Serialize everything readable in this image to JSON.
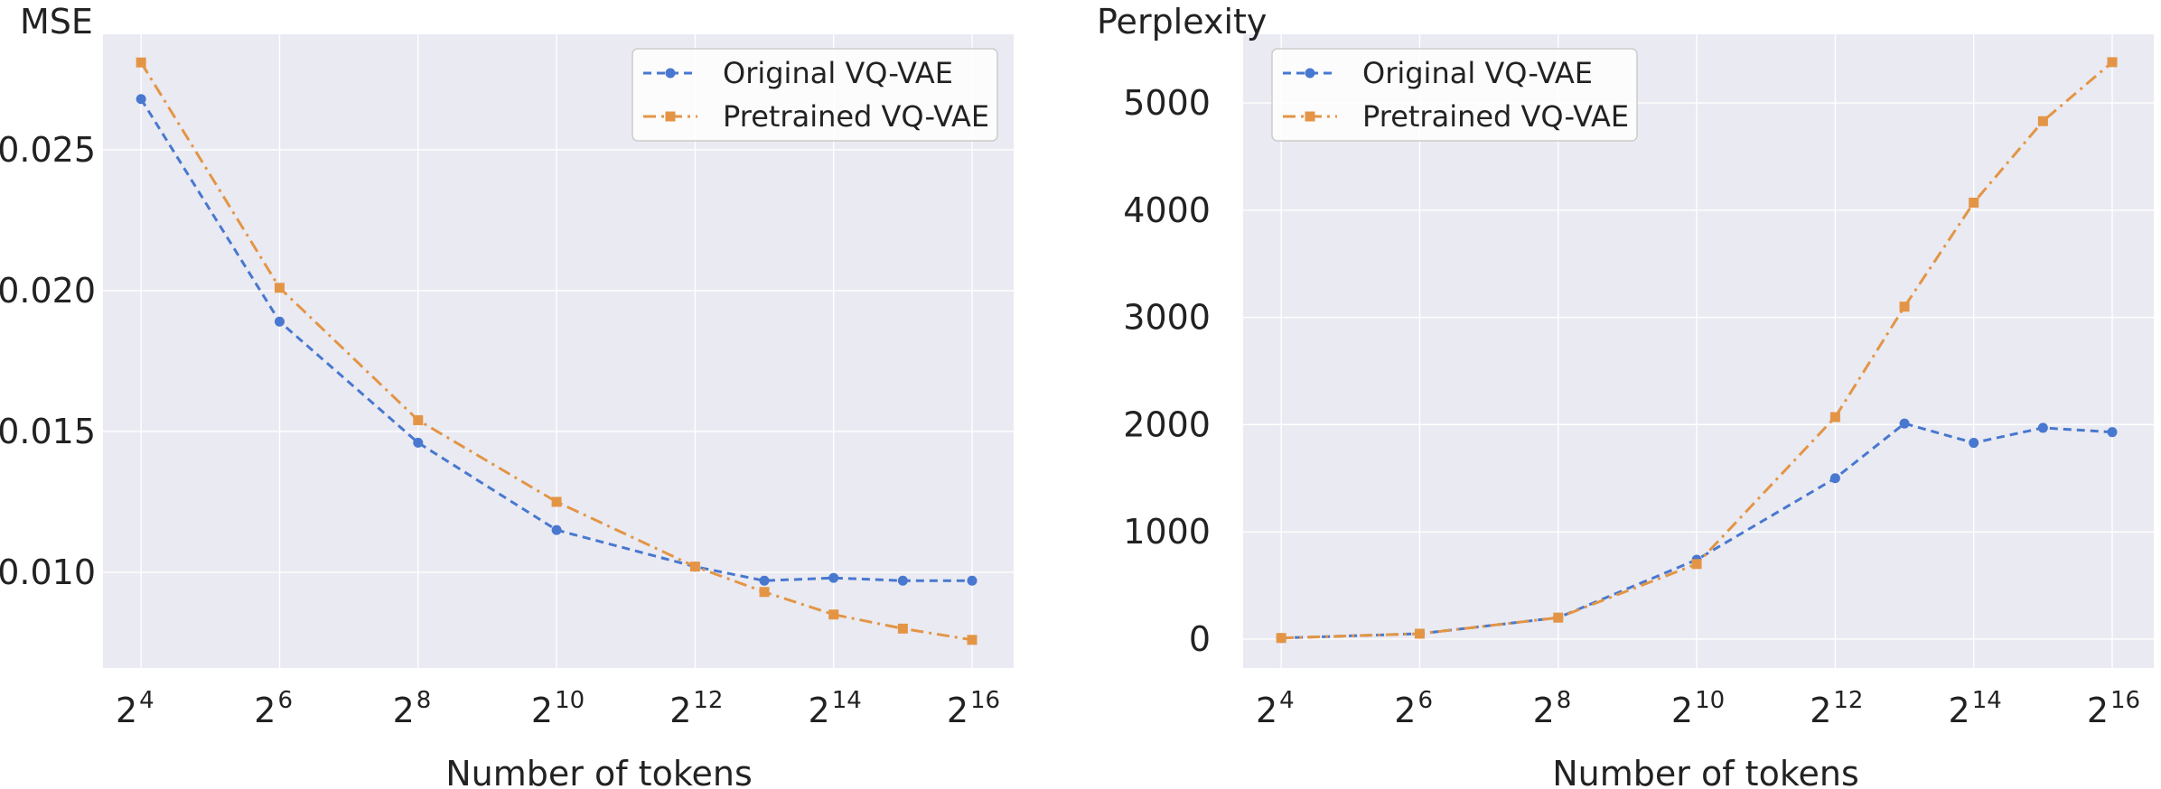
{
  "chart_data": [
    {
      "type": "line",
      "title": "",
      "xlabel": "Number of tokens",
      "ylabel": "MSE",
      "x_base": "2",
      "x_exponents": [
        4,
        6,
        8,
        10,
        12,
        13,
        14,
        15,
        16
      ],
      "x_tick_exponents": [
        "4",
        "6",
        "8",
        "10",
        "12",
        "14",
        "16"
      ],
      "y_ticks": [
        "0.010",
        "0.015",
        "0.020",
        "0.025"
      ],
      "y_tick_values": [
        0.01,
        0.015,
        0.02,
        0.025
      ],
      "xlim_exponent": [
        3.45,
        16.6
      ],
      "ylim": [
        0.0066,
        0.0291
      ],
      "grid": true,
      "legend": "top-right",
      "series": [
        {
          "name": "Original VQ-VAE",
          "color": "#4878cf",
          "dash": "dashed",
          "marker": "circle",
          "values": [
            0.0268,
            0.0189,
            0.0146,
            0.0115,
            0.0102,
            0.0097,
            0.0098,
            0.0097,
            0.0097
          ]
        },
        {
          "name": "Pretrained VQ-VAE",
          "color": "#e39545",
          "dash": "dashdot",
          "marker": "square",
          "values": [
            0.0281,
            0.0201,
            0.0154,
            0.0125,
            0.0102,
            0.0093,
            0.0085,
            0.008,
            0.0076
          ]
        }
      ]
    },
    {
      "type": "line",
      "title": "",
      "xlabel": "Number of tokens",
      "ylabel": "Perplexity",
      "x_base": "2",
      "x_exponents": [
        4,
        6,
        8,
        10,
        12,
        13,
        14,
        15,
        16
      ],
      "x_tick_exponents": [
        "4",
        "6",
        "8",
        "10",
        "12",
        "14",
        "16"
      ],
      "y_ticks": [
        "0",
        "1000",
        "2000",
        "3000",
        "4000",
        "5000"
      ],
      "y_tick_values": [
        0,
        1000,
        2000,
        3000,
        4000,
        5000
      ],
      "xlim_exponent": [
        3.45,
        16.6
      ],
      "ylim": [
        -270,
        5640
      ],
      "grid": true,
      "legend": "top-left",
      "series": [
        {
          "name": "Original VQ-VAE",
          "color": "#4878cf",
          "dash": "dashed",
          "marker": "circle",
          "values": [
            10,
            50,
            200,
            740,
            1500,
            2010,
            1830,
            1970,
            1930
          ]
        },
        {
          "name": "Pretrained VQ-VAE",
          "color": "#e39545",
          "dash": "dashdot",
          "marker": "square",
          "values": [
            10,
            50,
            200,
            700,
            2070,
            3100,
            4070,
            4830,
            5380
          ]
        }
      ]
    }
  ]
}
